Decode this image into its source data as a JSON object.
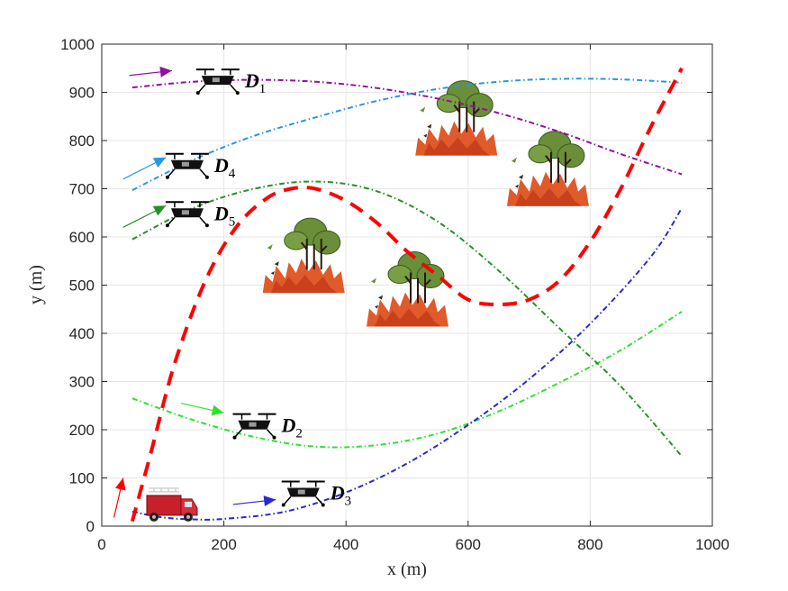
{
  "chart_data": {
    "type": "line",
    "xlabel": "x (m)",
    "ylabel": "y (m)",
    "xlim": [
      0,
      1000
    ],
    "ylim": [
      0,
      1000
    ],
    "xticks": [
      0,
      200,
      400,
      600,
      800,
      1000
    ],
    "yticks": [
      0,
      100,
      200,
      300,
      400,
      500,
      600,
      700,
      800,
      900,
      1000
    ],
    "grid": true,
    "series": [
      {
        "name": "",
        "label_text": "D",
        "label_sub": "1",
        "color": "#9010a0",
        "style": "dashdot",
        "x": [
          50,
          150,
          250,
          350,
          450,
          550,
          650,
          750,
          850,
          950
        ],
        "y": [
          910,
          922,
          926,
          922,
          909,
          887,
          857,
          818,
          772,
          730
        ]
      },
      {
        "name": "",
        "label_text": "D",
        "label_sub": "2",
        "color": "#30e030",
        "style": "dashdot",
        "x": [
          50,
          150,
          250,
          350,
          450,
          550,
          650,
          750,
          850,
          950
        ],
        "y": [
          265,
          220,
          185,
          165,
          168,
          192,
          238,
          298,
          365,
          445
        ]
      },
      {
        "name": "",
        "label_text": "D",
        "label_sub": "3",
        "color": "#2828d0",
        "style": "dashdot",
        "x": [
          50,
          100,
          150,
          200,
          300,
          400,
          500,
          600,
          700,
          800,
          900,
          950
        ],
        "y": [
          30,
          18,
          14,
          15,
          30,
          70,
          130,
          210,
          305,
          420,
          560,
          660
        ]
      },
      {
        "name": "",
        "label_text": "D",
        "label_sub": "4",
        "color": "#2898e0",
        "style": "dashdot",
        "x": [
          50,
          150,
          250,
          350,
          450,
          550,
          650,
          750,
          850,
          950
        ],
        "y": [
          697,
          760,
          810,
          848,
          882,
          907,
          922,
          928,
          927,
          920
        ]
      },
      {
        "name": "",
        "label_text": "D",
        "label_sub": "5",
        "color": "#289028",
        "style": "dashdot",
        "x": [
          50,
          150,
          250,
          350,
          450,
          550,
          650,
          750,
          850,
          950
        ],
        "y": [
          595,
          660,
          700,
          715,
          695,
          632,
          530,
          410,
          290,
          145
        ]
      },
      {
        "name": "",
        "color": "#ff0000",
        "style": "dashed",
        "x": [
          50,
          80,
          120,
          170,
          220,
          270,
          310,
          350,
          400,
          450,
          500,
          550,
          600,
          650,
          700,
          750,
          800,
          850,
          900,
          950
        ],
        "y": [
          10,
          150,
          340,
          510,
          620,
          680,
          700,
          700,
          675,
          630,
          570,
          520,
          470,
          460,
          470,
          510,
          590,
          700,
          830,
          950
        ]
      }
    ],
    "fires": [
      {
        "x": 580,
        "y": 840
      },
      {
        "x": 730,
        "y": 735
      },
      {
        "x": 330,
        "y": 555
      },
      {
        "x": 500,
        "y": 485
      }
    ],
    "drones": [
      {
        "x": 190,
        "y": 925,
        "label": "1",
        "arrow_from": [
          45,
          935
        ],
        "arrow_to": [
          115,
          945
        ],
        "color": "#9010a0"
      },
      {
        "x": 250,
        "y": 210,
        "label": "2",
        "arrow_from": [
          130,
          255
        ],
        "arrow_to": [
          200,
          235
        ],
        "color": "#30e030"
      },
      {
        "x": 330,
        "y": 70,
        "label": "3",
        "arrow_from": [
          215,
          45
        ],
        "arrow_to": [
          285,
          55
        ],
        "color": "#2828d0"
      },
      {
        "x": 140,
        "y": 750,
        "label": "4",
        "arrow_from": [
          35,
          720
        ],
        "arrow_to": [
          105,
          765
        ],
        "color": "#2898e0"
      },
      {
        "x": 140,
        "y": 650,
        "label": "5",
        "arrow_from": [
          35,
          620
        ],
        "arrow_to": [
          105,
          665
        ],
        "color": "#289028"
      }
    ],
    "truck": {
      "x": 115,
      "y": 45,
      "arrow_from": [
        20,
        18
      ],
      "arrow_to": [
        35,
        100
      ],
      "color": "#ff0000"
    }
  }
}
